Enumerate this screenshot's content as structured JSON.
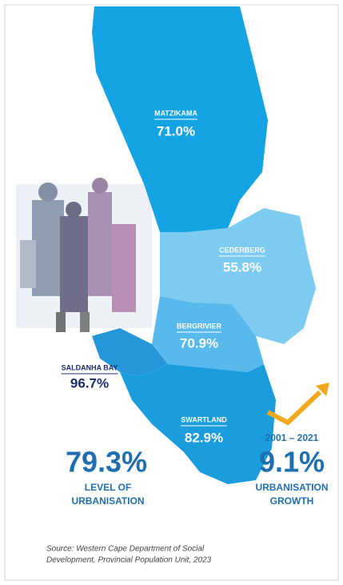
{
  "regions": [
    {
      "name": "MATZIKAMA",
      "value": "71.0%"
    },
    {
      "name": "CEDERBERG",
      "value": "55.8%"
    },
    {
      "name": "BERGRIVIER",
      "value": "70.9%"
    },
    {
      "name": "SALDANHA BAY",
      "value": "96.7%"
    },
    {
      "name": "SWARTLAND",
      "value": "82.9%"
    }
  ],
  "stats": [
    {
      "value": "79.3%",
      "lines": [
        "LEVEL OF",
        "URBANISATION"
      ]
    },
    {
      "period": "2001 – 2021",
      "value": "9.1%",
      "lines": [
        "URBANISATION",
        "GROWTH"
      ]
    }
  ],
  "source": [
    "Source: Western Cape Department of Social",
    "Development, Provincial Population Unit, 2023"
  ]
}
